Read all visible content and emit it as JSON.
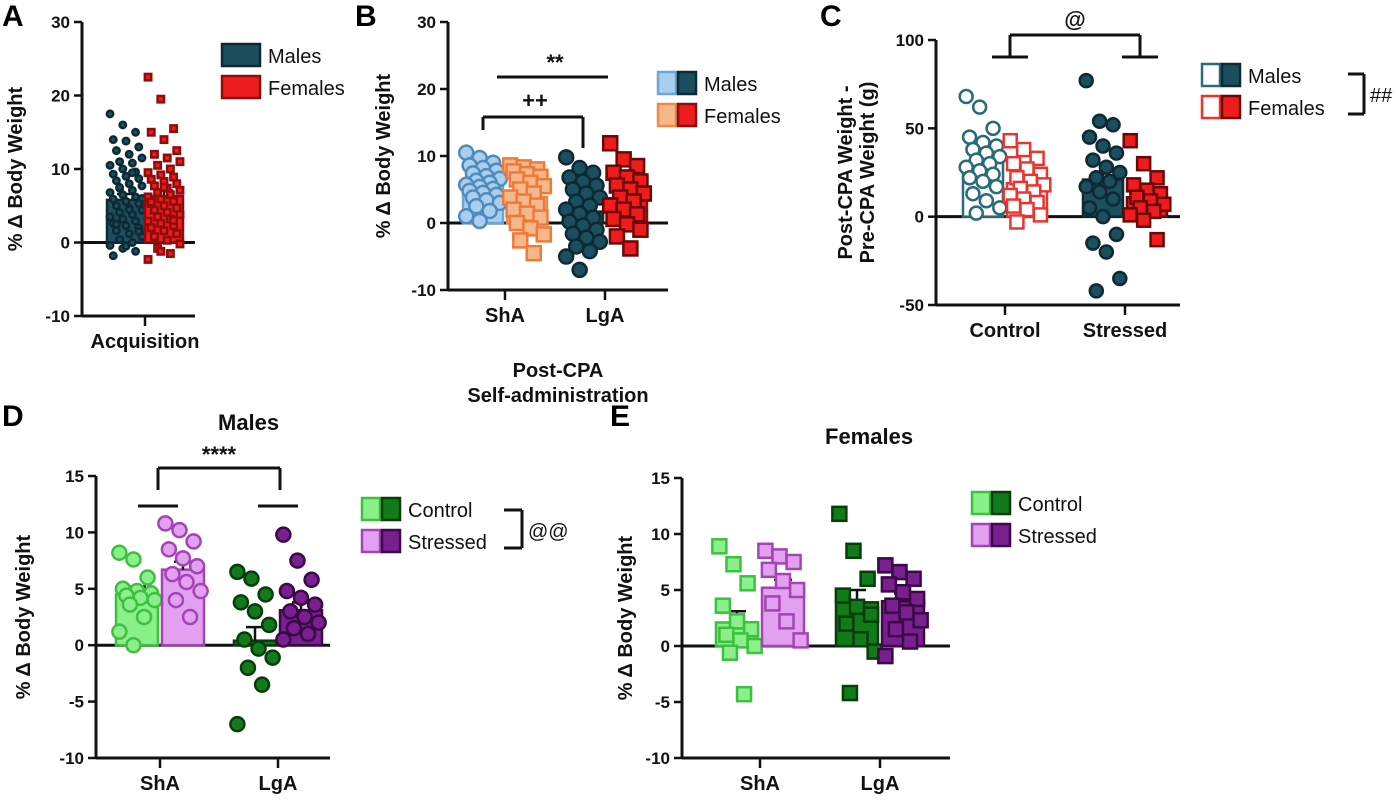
{
  "colors": {
    "male_dark": "#1b4f5f",
    "male_light": "#a9cfee",
    "female_red": "#ee1c1c",
    "female_light": "#f6b88a",
    "female_open": "#e8352f",
    "male_open": "#2a6b78",
    "green_light": "#8af08a",
    "green_light_edge": "#3fbf3f",
    "green_dark": "#137a1a",
    "purple_light": "#e3a0f0",
    "purple_light_edge": "#a245b4",
    "purple_dark": "#7a1f8f"
  },
  "chart_data": [
    {
      "panel": "A",
      "type": "bar",
      "ylabel": "% Δ Body Weight",
      "ylim": [
        -10,
        30
      ],
      "yticks": [
        "30",
        "20",
        "10",
        "0",
        "-10"
      ],
      "categories": [
        "Acquisition"
      ],
      "legend": [
        "Males",
        "Females"
      ],
      "series": [
        {
          "name": "Males",
          "values": [
            5.8
          ],
          "sem": [
            0.8
          ],
          "points": [
            17.5,
            16,
            15,
            14,
            13.8,
            13,
            12.5,
            12,
            11.5,
            11,
            10.8,
            10.5,
            10,
            9.6,
            9.3,
            9,
            8.7,
            8.4,
            8,
            7.7,
            7.4,
            7.1,
            6.8,
            6.5,
            6.2,
            5.9,
            5.6,
            5.3,
            5,
            4.7,
            4.4,
            4.1,
            3.8,
            3.5,
            3.2,
            2.9,
            2.6,
            2.3,
            2,
            1.6,
            1.2,
            0.8,
            0.4,
            0,
            -0.4,
            -0.8,
            -1.2,
            -1.8,
            -0.5,
            1.5,
            2.5,
            4.5,
            6,
            7.5,
            9.5
          ]
        },
        {
          "name": "Females",
          "values": [
            6.3
          ],
          "sem": [
            0.8
          ],
          "points": [
            22.5,
            19.5,
            15.5,
            15,
            14,
            12.5,
            12,
            11.5,
            11,
            10.5,
            10,
            9.5,
            9.2,
            8.9,
            8.6,
            8.3,
            8,
            7.7,
            7.4,
            7.1,
            6.8,
            6.5,
            6.2,
            5.9,
            5.6,
            5.3,
            5,
            4.7,
            4.4,
            4.1,
            3.8,
            3.5,
            3.2,
            2.9,
            2.6,
            2.3,
            2,
            1.6,
            1.2,
            0.8,
            0.3,
            -0.2,
            -0.8,
            -1.5,
            -2.3,
            -1.2,
            3,
            5.5,
            7.5
          ]
        }
      ]
    },
    {
      "panel": "B",
      "type": "bar",
      "xlabel": "Post-CPA Self-administration",
      "ylabel": "% Δ Body Weight",
      "ylim": [
        -10,
        30
      ],
      "yticks": [
        "30",
        "20",
        "10",
        "0",
        "-10"
      ],
      "categories": [
        "ShA",
        "LgA"
      ],
      "legend": [
        "Males",
        "Females"
      ],
      "significance": [
        "**",
        "++"
      ],
      "series": [
        {
          "name": "Males",
          "values": [
            5.6,
            1.7
          ],
          "sem": [
            0.7,
            1.0
          ],
          "points": [
            [
              10.5,
              9.7,
              9,
              8.6,
              8.2,
              7.8,
              7.4,
              7,
              6.6,
              6.3,
              6,
              5.7,
              5.4,
              5.1,
              4.8,
              4.5,
              4.2,
              3.8,
              3.4,
              3,
              2.5,
              1.8,
              1,
              0.3
            ],
            [
              9.8,
              8.2,
              7.5,
              6.8,
              6.2,
              5.6,
              5,
              4.4,
              3.8,
              3.2,
              2.6,
              2,
              1.4,
              0.8,
              0.2,
              -0.4,
              -1,
              -1.6,
              -2.2,
              -2.8,
              -3.5,
              -4.2,
              -5,
              -7
            ]
          ]
        },
        {
          "name": "Females",
          "values": [
            3.9,
            3.7
          ],
          "sem": [
            0.8,
            0.9
          ],
          "points": [
            [
              8.6,
              8.3,
              8,
              7.7,
              7.3,
              6.9,
              6.5,
              6,
              5.5,
              5,
              4.4,
              3.8,
              3.2,
              2.6,
              2,
              1.4,
              0.8,
              0,
              -0.8,
              -1.7,
              -2.6,
              -4.5
            ],
            [
              11.9,
              9.5,
              8.5,
              7.5,
              6.8,
              6.2,
              5.6,
              5,
              4.4,
              3.8,
              3.2,
              2.6,
              2,
              1.3,
              0.6,
              -0.2,
              -1,
              -2,
              -3.8
            ]
          ]
        }
      ]
    },
    {
      "panel": "C",
      "type": "bar",
      "ylabel": "Post-CPA Weight - Pre-CPA Weight (g)",
      "ylim": [
        -50,
        100
      ],
      "yticks": [
        "100",
        "50",
        "0",
        "-50"
      ],
      "categories": [
        "Control",
        "Stressed"
      ],
      "legend": [
        "Males",
        "Females"
      ],
      "significance": [
        "@",
        "##"
      ],
      "series": [
        {
          "name": "Males",
          "values": [
            31,
            21
          ],
          "sem": [
            3,
            4.5
          ],
          "points": [
            [
              68,
              62,
              50,
              45,
              42,
              40,
              38,
              36,
              34,
              32,
              30,
              28,
              26,
              24,
              22,
              20,
              17,
              13,
              9,
              5,
              2
            ],
            [
              77,
              54,
              52,
              45,
              40,
              36,
              32,
              28,
              25,
              22,
              20,
              17,
              14,
              10,
              5,
              0,
              -10,
              -15,
              -20,
              -35,
              -42
            ]
          ]
        },
        {
          "name": "Females",
          "values": [
            19,
            11
          ],
          "sem": [
            2.5,
            2.5
          ],
          "points": [
            [
              43,
              38,
              33,
              30,
              27,
              24,
              22,
              20,
              18,
              16,
              14,
              12,
              10,
              8,
              6,
              4,
              1,
              -3
            ],
            [
              43,
              30,
              22,
              18,
              15,
              13,
              11,
              9,
              7,
              5,
              3,
              1,
              -2,
              -13
            ]
          ]
        }
      ]
    },
    {
      "panel": "D",
      "type": "bar",
      "title": "Males",
      "ylabel": "% Δ Body Weight",
      "ylim": [
        -10,
        15
      ],
      "yticks": [
        "15",
        "10",
        "5",
        "0",
        "-5",
        "-10"
      ],
      "categories": [
        "ShA",
        "LgA"
      ],
      "legend": [
        "Control",
        "Stressed"
      ],
      "significance": [
        "****",
        "@@"
      ],
      "series": [
        {
          "name": "Control",
          "values": [
            4.5,
            0.4
          ],
          "sem": [
            0.7,
            1.2
          ],
          "points": [
            [
              8.2,
              7.6,
              6,
              5,
              4.8,
              4.6,
              4.4,
              4.2,
              4,
              3.6,
              2.5,
              1.2,
              0
            ],
            [
              6.5,
              5.9,
              4.5,
              3.8,
              3,
              1.8,
              0.5,
              -0.3,
              -1.1,
              -2,
              -3.5,
              -7
            ]
          ]
        },
        {
          "name": "Stressed",
          "values": [
            6.7,
            3.1
          ],
          "sem": [
            0.7,
            0.7
          ],
          "points": [
            [
              10.8,
              10.2,
              9.2,
              8.5,
              7.7,
              7,
              6.3,
              5.6,
              4.8,
              4,
              2.5
            ],
            [
              9.8,
              7.5,
              5.8,
              4.8,
              4.2,
              3.6,
              3,
              2.5,
              2,
              1.5,
              1,
              0.5
            ]
          ]
        }
      ]
    },
    {
      "panel": "E",
      "type": "bar",
      "title": "Females",
      "ylabel": "% Δ Body Weight",
      "ylim": [
        -10,
        15
      ],
      "yticks": [
        "15",
        "10",
        "5",
        "0",
        "-5",
        "-10"
      ],
      "categories": [
        "ShA",
        "LgA"
      ],
      "legend": [
        "Control",
        "Stressed"
      ],
      "series": [
        {
          "name": "Control",
          "values": [
            2.1,
            3.9
          ],
          "sem": [
            1.0,
            1.1
          ],
          "points": [
            [
              8.9,
              7.3,
              5.6,
              3.6,
              2.2,
              1.5,
              1,
              0.5,
              0,
              -0.6,
              -4.3
            ],
            [
              11.8,
              8.5,
              6,
              4.5,
              3.5,
              2.8,
              2,
              0.6,
              -0.5,
              -4.2
            ]
          ]
        },
        {
          "name": "Stressed",
          "values": [
            5.2,
            4.0
          ],
          "sem": [
            0.7,
            0.7
          ],
          "points": [
            [
              8.5,
              8,
              7.5,
              6.8,
              5.8,
              5,
              3.8,
              2.2,
              0.5
            ],
            [
              7.2,
              6.6,
              6,
              5.5,
              4.8,
              4.2,
              3.6,
              3,
              2.3,
              1.5,
              0.4,
              -0.9
            ]
          ]
        }
      ]
    }
  ]
}
